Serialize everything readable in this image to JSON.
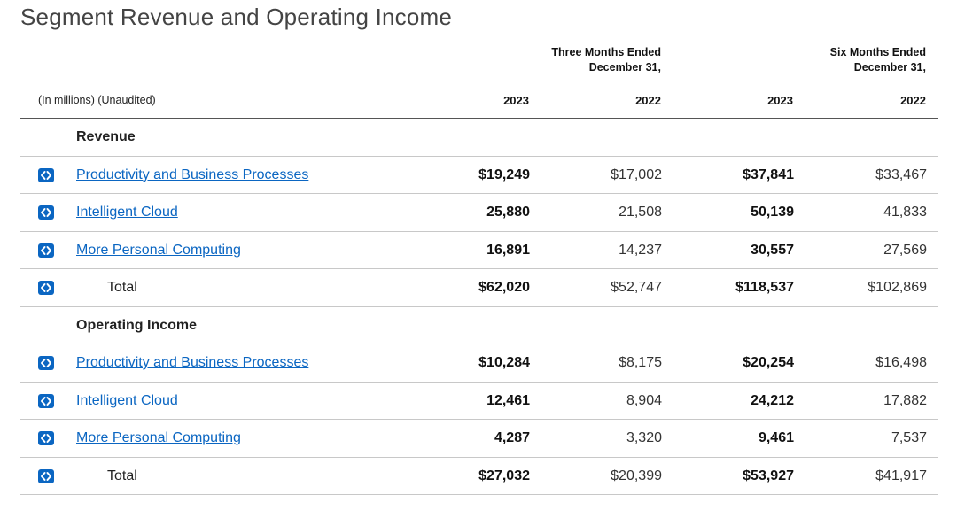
{
  "title": "Segment Revenue and Operating Income",
  "header": {
    "units": "(In millions) (Unaudited)",
    "period_three_months": [
      "Three Months Ended",
      "December 31,"
    ],
    "period_six_months": [
      "Six Months Ended",
      "December 31,"
    ],
    "years": [
      "2023",
      "2022",
      "2023",
      "2022"
    ]
  },
  "sections": [
    {
      "label": "Revenue",
      "rows": [
        {
          "label": "Productivity and Business Processes",
          "link": true,
          "values": [
            "$19,249",
            "$17,002",
            "$37,841",
            "$33,467"
          ]
        },
        {
          "label": "Intelligent Cloud",
          "link": true,
          "values": [
            "25,880",
            "21,508",
            "50,139",
            "41,833"
          ]
        },
        {
          "label": "More Personal Computing",
          "link": true,
          "values": [
            "16,891",
            "14,237",
            "30,557",
            "27,569"
          ]
        },
        {
          "label": "Total",
          "link": false,
          "values": [
            "$62,020",
            "$52,747",
            "$118,537",
            "$102,869"
          ]
        }
      ]
    },
    {
      "label": "Operating Income",
      "rows": [
        {
          "label": "Productivity and Business Processes",
          "link": true,
          "values": [
            "$10,284",
            "$8,175",
            "$20,254",
            "$16,498"
          ]
        },
        {
          "label": "Intelligent Cloud",
          "link": true,
          "values": [
            "12,461",
            "8,904",
            "24,212",
            "17,882"
          ]
        },
        {
          "label": "More Personal Computing",
          "link": true,
          "values": [
            "4,287",
            "3,320",
            "9,461",
            "7,537"
          ]
        },
        {
          "label": "Total",
          "link": false,
          "values": [
            "$27,032",
            "$20,399",
            "$53,927",
            "$41,917"
          ]
        }
      ]
    }
  ],
  "icons": {
    "row_button": "expand-arrows-icon"
  },
  "colors": {
    "link": "#0b66c2",
    "button": "#0b66c2"
  }
}
